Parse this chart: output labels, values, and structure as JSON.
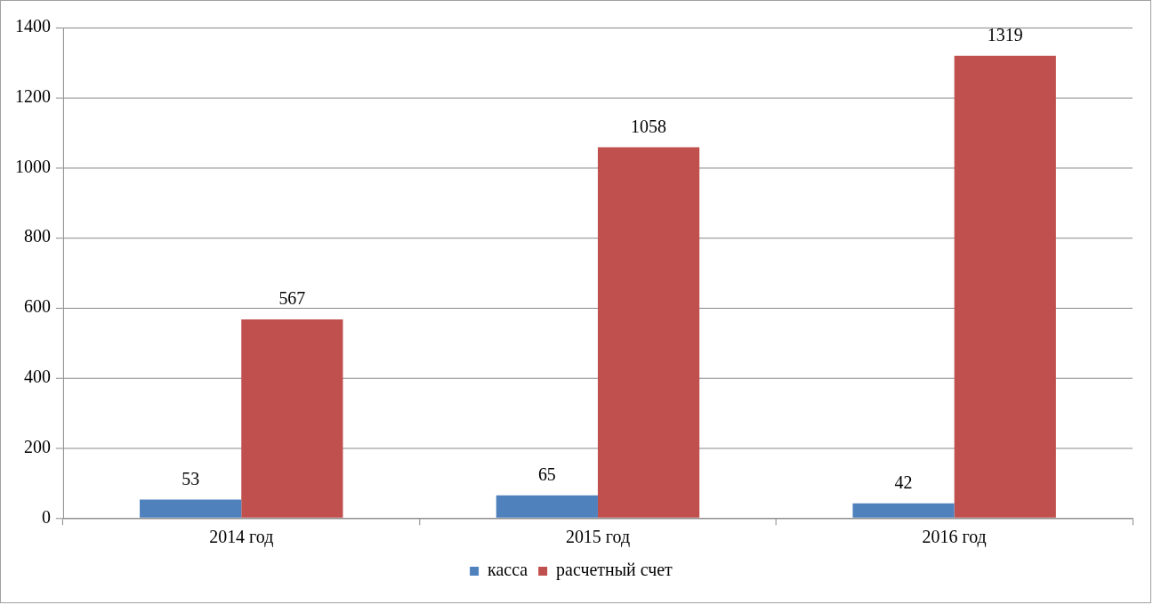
{
  "chart_data": {
    "type": "bar",
    "categories": [
      "2014 год",
      "2015 год",
      "2016 год"
    ],
    "series": [
      {
        "name": "касса",
        "color": "#4f81bd",
        "values": [
          53,
          65,
          42
        ]
      },
      {
        "name": "расчетный счет",
        "color": "#c0504d",
        "values": [
          567,
          1058,
          1319
        ]
      }
    ],
    "ylim": [
      0,
      1400
    ],
    "yticks": [
      0,
      200,
      400,
      600,
      800,
      1000,
      1200,
      1400
    ],
    "grid": "y",
    "legend": "bottom",
    "data_labels": true
  }
}
